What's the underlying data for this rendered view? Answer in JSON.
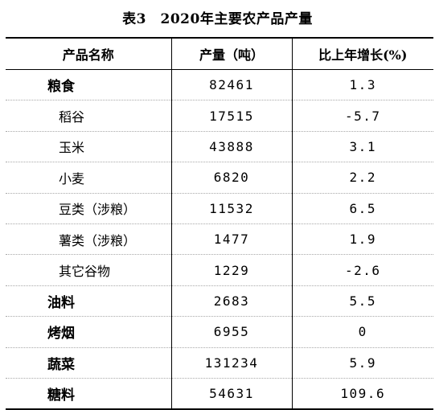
{
  "table": {
    "title": "表3　2020年主要农产品产量",
    "headers": [
      "产品名称",
      "产量（吨）",
      "比上年增长(%)"
    ],
    "rows": [
      {
        "name": "粮食",
        "level": 0,
        "output": "82461",
        "growth": "1.3"
      },
      {
        "name": "稻谷",
        "level": 1,
        "output": "17515",
        "growth": "-5.7"
      },
      {
        "name": "玉米",
        "level": 1,
        "output": "43888",
        "growth": "3.1"
      },
      {
        "name": "小麦",
        "level": 1,
        "output": "6820",
        "growth": "2.2"
      },
      {
        "name": "豆类（涉粮）",
        "level": 1,
        "output": "11532",
        "growth": "6.5"
      },
      {
        "name": "薯类（涉粮）",
        "level": 1,
        "output": "1477",
        "growth": "1.9"
      },
      {
        "name": "其它谷物",
        "level": 1,
        "output": "1229",
        "growth": "-2.6"
      },
      {
        "name": "油料",
        "level": 0,
        "output": "2683",
        "growth": "5.5"
      },
      {
        "name": "烤烟",
        "level": 0,
        "output": "6955",
        "growth": "0"
      },
      {
        "name": "蔬菜",
        "level": 0,
        "output": "131234",
        "growth": "5.9"
      },
      {
        "name": "糖料",
        "level": 0,
        "output": "54631",
        "growth": "109.6"
      }
    ]
  }
}
